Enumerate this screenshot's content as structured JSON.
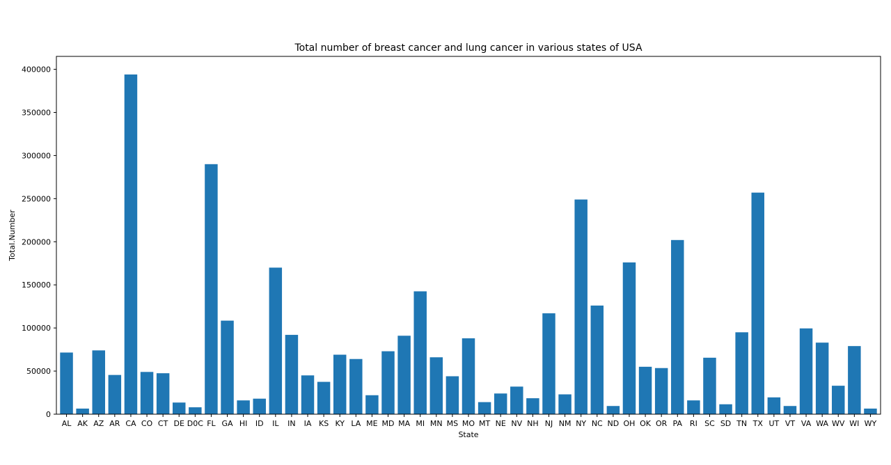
{
  "chart_data": {
    "type": "bar",
    "title": "Total number of breast cancer and lung cancer in various states of USA",
    "xlabel": "State",
    "ylabel": "Total.Number",
    "ylim": [
      0,
      415000
    ],
    "yticks": [
      0,
      50000,
      100000,
      150000,
      200000,
      250000,
      300000,
      350000,
      400000
    ],
    "grid": false,
    "bar_color": "#1f77b4",
    "categories": [
      "AL",
      "AK",
      "AZ",
      "AR",
      "CA",
      "CO",
      "CT",
      "DE",
      "D0C",
      "FL",
      "GA",
      "HI",
      "ID",
      "IL",
      "IN",
      "IA",
      "KS",
      "KY",
      "LA",
      "ME",
      "MD",
      "MA",
      "MI",
      "MN",
      "MS",
      "MO",
      "MT",
      "NE",
      "NV",
      "NH",
      "NJ",
      "NM",
      "NY",
      "NC",
      "ND",
      "OH",
      "OK",
      "OR",
      "PA",
      "RI",
      "SC",
      "SD",
      "TN",
      "TX",
      "UT",
      "VT",
      "VA",
      "WA",
      "WV",
      "WI",
      "WY"
    ],
    "values": [
      71500,
      6500,
      74000,
      45500,
      394000,
      49000,
      47500,
      13500,
      8000,
      290000,
      108500,
      16000,
      18000,
      170000,
      92000,
      45000,
      37500,
      69000,
      64000,
      22000,
      73000,
      91000,
      142500,
      66000,
      44000,
      88000,
      14000,
      24000,
      32000,
      18500,
      117000,
      23000,
      249000,
      126000,
      9500,
      176000,
      55000,
      53500,
      202000,
      16000,
      65500,
      11500,
      95000,
      257000,
      19500,
      9500,
      99500,
      83000,
      33000,
      79000,
      6500
    ]
  }
}
